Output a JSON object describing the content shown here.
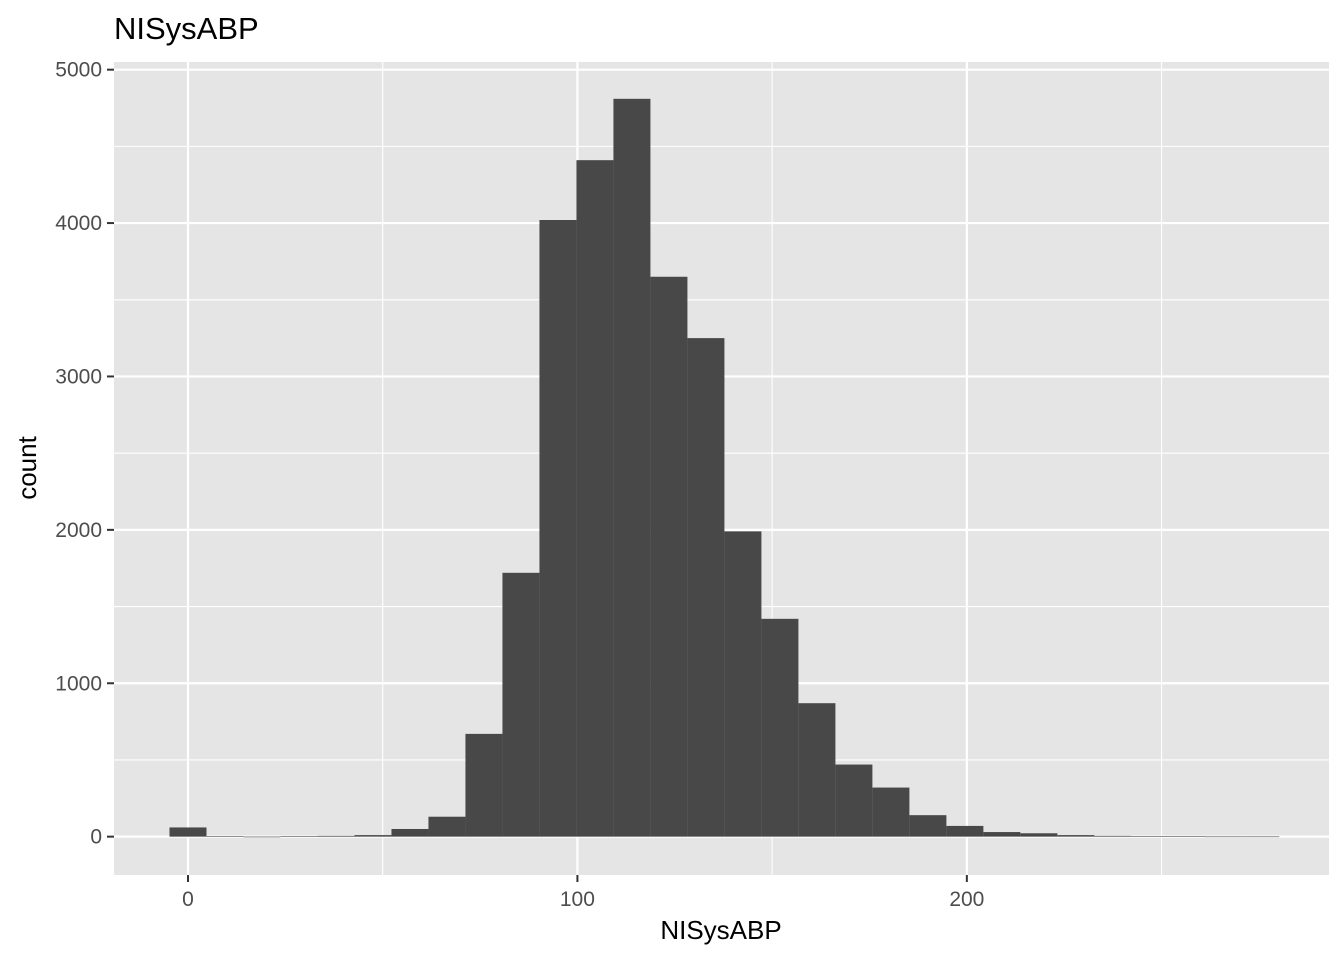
{
  "chart_data": {
    "type": "bar",
    "title": "NISysABP",
    "xlabel": "NISysABP",
    "ylabel": "count",
    "xlim": [
      -19,
      293
    ],
    "ylim": [
      -250,
      5050
    ],
    "x_ticks": [
      0,
      100,
      200
    ],
    "x_tick_labels": [
      "0",
      "100",
      "200"
    ],
    "y_ticks": [
      0,
      1000,
      2000,
      3000,
      4000,
      5000
    ],
    "y_tick_labels": [
      "0",
      "1000",
      "2000",
      "3000",
      "4000",
      "5000"
    ],
    "bin_width": 9.5,
    "bin_centers": [
      0,
      9.5,
      19,
      28.5,
      38,
      47.5,
      57,
      66.5,
      76,
      85.5,
      95,
      104.5,
      114,
      123.5,
      133,
      142.5,
      152,
      161.5,
      171,
      180.5,
      190,
      199.5,
      209,
      218.5,
      228,
      237.5,
      247,
      256.5,
      266,
      275.5
    ],
    "values": [
      60,
      3,
      0,
      2,
      5,
      10,
      50,
      130,
      670,
      1720,
      4020,
      4410,
      4810,
      3650,
      3250,
      1990,
      1420,
      870,
      470,
      320,
      140,
      70,
      30,
      22,
      10,
      5,
      3,
      2,
      1,
      1
    ],
    "grid": true,
    "colors": {
      "panel_background": "#e5e5e5",
      "grid": "#ffffff",
      "bar_fill": "#484848",
      "tick_label": "#4d4d4d",
      "tick_mark": "#333333"
    }
  }
}
